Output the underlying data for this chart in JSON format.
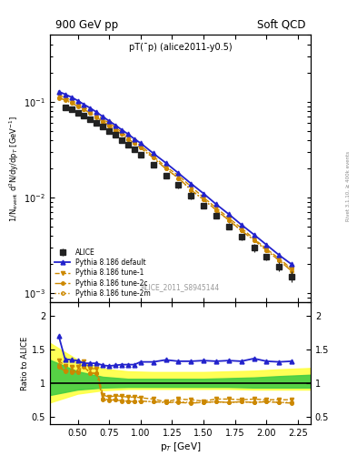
{
  "title_left": "900 GeV pp",
  "title_right": "Soft QCD",
  "plot_title": "pT(¯p) (alice2011-y0.5)",
  "watermark": "ALICE_2011_S8945144",
  "right_label": "Rivet 3.1.10, ≥ 400k events",
  "ylabel_main": "1/N$_{event}$ d$^2$N/dy/dp$_T$ [GeV$^{-1}$]",
  "ylabel_ratio": "Ratio to ALICE",
  "xlabel": "p$_T$ [GeV]",
  "xlim": [
    0.28,
    2.35
  ],
  "ylim_main": [
    0.0008,
    0.5
  ],
  "ylim_ratio": [
    0.4,
    2.2
  ],
  "alice_pt": [
    0.4,
    0.45,
    0.5,
    0.55,
    0.6,
    0.65,
    0.7,
    0.75,
    0.8,
    0.85,
    0.9,
    0.95,
    1.0,
    1.1,
    1.2,
    1.3,
    1.4,
    1.5,
    1.6,
    1.7,
    1.8,
    1.9,
    2.0,
    2.1,
    2.2
  ],
  "alice_y": [
    0.088,
    0.083,
    0.077,
    0.072,
    0.066,
    0.06,
    0.055,
    0.05,
    0.045,
    0.04,
    0.036,
    0.032,
    0.028,
    0.022,
    0.017,
    0.0135,
    0.0105,
    0.0082,
    0.0064,
    0.005,
    0.0039,
    0.003,
    0.0024,
    0.0019,
    0.0015
  ],
  "alice_yerr": [
    0.006,
    0.005,
    0.004,
    0.004,
    0.003,
    0.003,
    0.003,
    0.003,
    0.002,
    0.002,
    0.002,
    0.002,
    0.002,
    0.001,
    0.001,
    0.001,
    0.001,
    0.0005,
    0.0004,
    0.0004,
    0.0003,
    0.0003,
    0.0002,
    0.0002,
    0.0002
  ],
  "pythia_pt": [
    0.35,
    0.4,
    0.45,
    0.5,
    0.55,
    0.6,
    0.65,
    0.7,
    0.75,
    0.8,
    0.85,
    0.9,
    0.95,
    1.0,
    1.1,
    1.2,
    1.3,
    1.4,
    1.5,
    1.6,
    1.7,
    1.8,
    1.9,
    2.0,
    2.1,
    2.2
  ],
  "default_y": [
    0.128,
    0.12,
    0.112,
    0.103,
    0.094,
    0.086,
    0.078,
    0.07,
    0.063,
    0.057,
    0.051,
    0.046,
    0.041,
    0.037,
    0.029,
    0.023,
    0.018,
    0.014,
    0.011,
    0.0085,
    0.0067,
    0.0052,
    0.0041,
    0.0032,
    0.0025,
    0.002
  ],
  "tune1_y": [
    0.118,
    0.111,
    0.104,
    0.096,
    0.088,
    0.081,
    0.073,
    0.066,
    0.06,
    0.054,
    0.048,
    0.043,
    0.039,
    0.035,
    0.027,
    0.021,
    0.017,
    0.013,
    0.01,
    0.0078,
    0.0061,
    0.0048,
    0.0037,
    0.0029,
    0.0023,
    0.0018
  ],
  "tune2c_y": [
    0.11,
    0.104,
    0.097,
    0.09,
    0.083,
    0.076,
    0.069,
    0.062,
    0.056,
    0.051,
    0.046,
    0.041,
    0.037,
    0.033,
    0.026,
    0.02,
    0.016,
    0.012,
    0.0095,
    0.0074,
    0.0058,
    0.0045,
    0.0036,
    0.0028,
    0.0022,
    0.0017
  ],
  "tune2m_y": [
    0.112,
    0.106,
    0.099,
    0.092,
    0.084,
    0.077,
    0.07,
    0.063,
    0.057,
    0.051,
    0.046,
    0.041,
    0.037,
    0.033,
    0.026,
    0.02,
    0.016,
    0.012,
    0.0095,
    0.0074,
    0.0058,
    0.0045,
    0.0036,
    0.0028,
    0.0022,
    0.0018
  ],
  "ratio_pt": [
    0.35,
    0.4,
    0.45,
    0.5,
    0.55,
    0.6,
    0.65,
    0.7,
    0.75,
    0.8,
    0.85,
    0.9,
    0.95,
    1.0,
    1.1,
    1.2,
    1.3,
    1.4,
    1.5,
    1.6,
    1.7,
    1.8,
    1.9,
    2.0,
    2.1,
    2.2
  ],
  "ratio_default": [
    1.7,
    1.36,
    1.35,
    1.34,
    1.3,
    1.3,
    1.3,
    1.27,
    1.26,
    1.27,
    1.28,
    1.28,
    1.28,
    1.32,
    1.32,
    1.35,
    1.33,
    1.33,
    1.34,
    1.33,
    1.34,
    1.33,
    1.37,
    1.33,
    1.32,
    1.33
  ],
  "ratio_tune1": [
    1.34,
    1.26,
    1.25,
    1.25,
    1.33,
    1.22,
    1.22,
    0.83,
    0.8,
    0.82,
    0.81,
    0.8,
    0.8,
    0.79,
    0.77,
    0.73,
    0.77,
    0.76,
    0.74,
    0.77,
    0.77,
    0.76,
    0.77,
    0.76,
    0.76,
    0.76
  ],
  "ratio_tune2c": [
    1.25,
    1.18,
    1.17,
    1.17,
    1.25,
    1.15,
    1.15,
    0.76,
    0.75,
    0.76,
    0.74,
    0.74,
    0.73,
    0.74,
    0.73,
    0.72,
    0.72,
    0.71,
    0.72,
    0.73,
    0.72,
    0.73,
    0.72,
    0.73,
    0.72,
    0.71
  ],
  "ratio_tune2m": [
    1.27,
    1.2,
    1.19,
    1.19,
    1.26,
    1.16,
    1.16,
    0.78,
    0.76,
    0.76,
    0.75,
    0.74,
    0.73,
    0.74,
    0.73,
    0.72,
    0.73,
    0.72,
    0.72,
    0.73,
    0.72,
    0.73,
    0.72,
    0.74,
    0.72,
    0.72
  ],
  "band_x": [
    0.28,
    0.5,
    0.7,
    0.9,
    1.1,
    1.3,
    1.5,
    1.7,
    1.9,
    2.1,
    2.35
  ],
  "band_yellow_lo": [
    0.72,
    0.85,
    0.9,
    0.92,
    0.92,
    0.92,
    0.92,
    0.92,
    0.91,
    0.91,
    0.91
  ],
  "band_yellow_hi": [
    1.6,
    1.35,
    1.22,
    1.18,
    1.17,
    1.17,
    1.17,
    1.18,
    1.19,
    1.21,
    1.23
  ],
  "band_green_lo": [
    0.83,
    0.91,
    0.94,
    0.95,
    0.95,
    0.95,
    0.95,
    0.95,
    0.94,
    0.94,
    0.94
  ],
  "band_green_hi": [
    1.35,
    1.18,
    1.1,
    1.07,
    1.07,
    1.07,
    1.07,
    1.08,
    1.09,
    1.11,
    1.13
  ],
  "color_alice": "#222222",
  "color_default": "#2222cc",
  "color_tune": "#cc8800",
  "color_band_yellow": "#ffff44",
  "color_band_green": "#44cc44"
}
